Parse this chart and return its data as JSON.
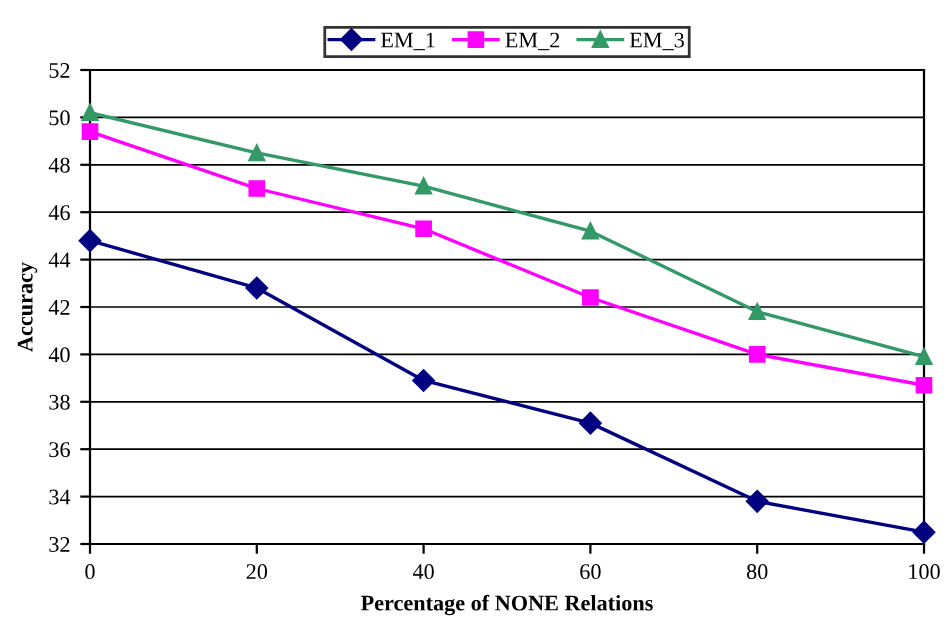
{
  "chart_data": {
    "type": "line",
    "xlabel": "Percentage of NONE Relations",
    "ylabel": "Accuracy",
    "x": [
      0,
      20,
      40,
      60,
      80,
      100
    ],
    "series": [
      {
        "name": "EM_1",
        "color": "#000080",
        "marker": "diamond",
        "values": [
          44.8,
          42.8,
          38.9,
          37.1,
          33.8,
          32.5
        ]
      },
      {
        "name": "EM_2",
        "color": "#ff00ff",
        "marker": "square",
        "values": [
          49.4,
          47.0,
          45.3,
          42.4,
          40.0,
          38.7
        ]
      },
      {
        "name": "EM_3",
        "color": "#339966",
        "marker": "triangle",
        "values": [
          50.2,
          48.5,
          47.1,
          45.2,
          41.8,
          39.9
        ]
      }
    ],
    "xlim": [
      0,
      100
    ],
    "xticks": [
      0,
      20,
      40,
      60,
      80,
      100
    ],
    "ylim": [
      32,
      52
    ],
    "yticks": [
      32,
      34,
      36,
      38,
      40,
      42,
      44,
      46,
      48,
      50,
      52
    ],
    "grid": "y",
    "legend": "top",
    "line_style": "solid"
  }
}
